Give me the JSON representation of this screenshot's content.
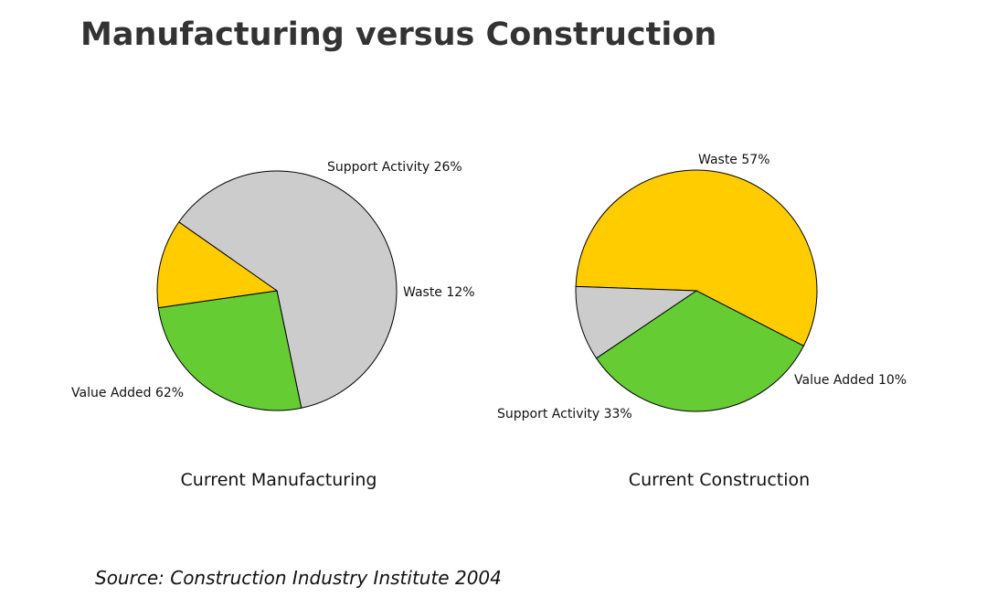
{
  "title": "Manufacturing versus Construction",
  "source": "Source: Construction Industry Institute 2004",
  "colors": {
    "Value Added": "#cccccc",
    "Support Activity": "#66cc33",
    "Waste": "#ffcc00"
  },
  "chart_data": [
    {
      "type": "pie",
      "title": "Current Manufacturing",
      "slices": [
        {
          "label": "Value Added",
          "value": 62,
          "text": "Value Added 62%"
        },
        {
          "label": "Support Activity",
          "value": 26,
          "text": "Support Activity 26%"
        },
        {
          "label": "Waste",
          "value": 12,
          "text": "Waste 12%"
        }
      ]
    },
    {
      "type": "pie",
      "title": "Current Construction",
      "slices": [
        {
          "label": "Waste",
          "value": 57,
          "text": "Waste 57%"
        },
        {
          "label": "Support Activity",
          "value": 33,
          "text": "Support Activity 33%"
        },
        {
          "label": "Value Added",
          "value": 10,
          "text": "Value Added 10%"
        }
      ]
    }
  ]
}
